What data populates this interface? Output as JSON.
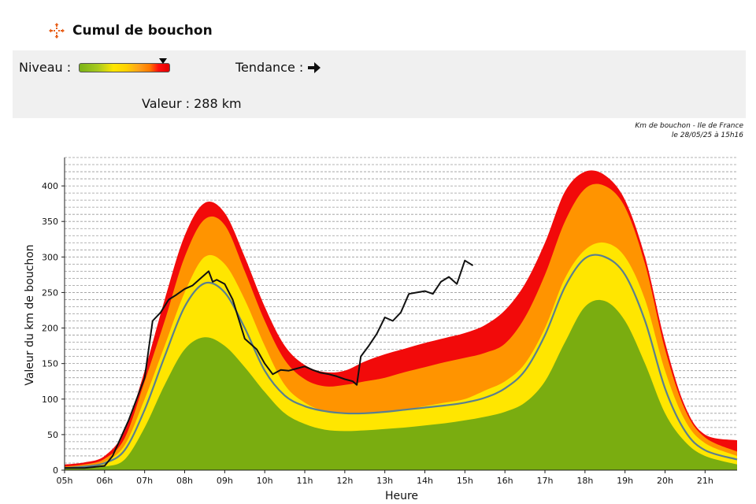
{
  "header": {
    "title": "Cumul de bouchon",
    "icon": "move-arrows-icon"
  },
  "panel": {
    "niveau_label": "Niveau :",
    "niveau_level": 0.93,
    "tendance_label": "Tendance :",
    "tendance_icon": "arrow-right-icon",
    "valeur_label": "Valeur : 288 km"
  },
  "source": {
    "line1": "Km de bouchon - Ile de France",
    "line2": "le 28/05/25 à 15h16"
  },
  "chart_data": {
    "type": "area",
    "xlabel": "Heure",
    "ylabel": "Valeur du  km de bouchon",
    "xlim": [
      5,
      21.8
    ],
    "ylim": [
      0,
      440
    ],
    "x_ticks": [
      "05h",
      "06h",
      "07h",
      "08h",
      "09h",
      "10h",
      "11h",
      "12h",
      "13h",
      "14h",
      "15h",
      "16h",
      "17h",
      "18h",
      "19h",
      "20h",
      "21h"
    ],
    "y_ticks": [
      0,
      50,
      100,
      150,
      200,
      250,
      300,
      350,
      400
    ],
    "grid": "dashed-horizontal",
    "bands_x": [
      5,
      5.5,
      6,
      6.5,
      7,
      7.5,
      8,
      8.5,
      9,
      9.5,
      10,
      10.5,
      11,
      11.5,
      12,
      12.5,
      13,
      13.5,
      14,
      14.5,
      15,
      15.5,
      16,
      16.5,
      17,
      17.5,
      18,
      18.5,
      19,
      19.5,
      20,
      20.5,
      21,
      21.8
    ],
    "series": [
      {
        "name": "",
        "color": "#7aad10",
        "values": [
          2,
          3,
          5,
          15,
          60,
          120,
          170,
          187,
          175,
          145,
          110,
          80,
          65,
          57,
          55,
          56,
          58,
          60,
          63,
          66,
          70,
          75,
          82,
          95,
          125,
          180,
          230,
          238,
          210,
          150,
          80,
          40,
          20,
          8
        ]
      },
      {
        "name": "",
        "color": "#ffe600",
        "values": [
          4,
          6,
          12,
          35,
          100,
          175,
          250,
          300,
          290,
          240,
          175,
          120,
          95,
          83,
          80,
          80,
          82,
          85,
          90,
          95,
          100,
          112,
          125,
          150,
          200,
          270,
          310,
          320,
          300,
          240,
          140,
          70,
          38,
          20
        ]
      },
      {
        "name": "",
        "color": "#ff9400",
        "values": [
          5,
          8,
          16,
          45,
          125,
          210,
          300,
          353,
          345,
          280,
          210,
          155,
          128,
          118,
          120,
          125,
          130,
          138,
          145,
          152,
          158,
          165,
          178,
          215,
          275,
          350,
          396,
          400,
          370,
          290,
          170,
          85,
          46,
          26
        ]
      },
      {
        "name": "",
        "color": "#f20a0a",
        "values": [
          8,
          11,
          20,
          55,
          140,
          240,
          330,
          376,
          362,
          300,
          230,
          175,
          148,
          138,
          140,
          153,
          163,
          171,
          179,
          186,
          193,
          204,
          225,
          262,
          320,
          392,
          420,
          415,
          380,
          300,
          180,
          90,
          50,
          42
        ]
      }
    ],
    "mean_curve": {
      "color": "#5a7f8f",
      "x": [
        5,
        5.5,
        6,
        6.5,
        7,
        7.5,
        8,
        8.5,
        9,
        9.5,
        10,
        10.5,
        11,
        11.5,
        12,
        12.5,
        13,
        13.5,
        14,
        14.5,
        15,
        15.5,
        16,
        16.5,
        17,
        17.5,
        18,
        18.5,
        19,
        19.5,
        20,
        20.5,
        21,
        21.8
      ],
      "values": [
        3,
        5,
        10,
        28,
        85,
        160,
        230,
        263,
        250,
        200,
        140,
        105,
        90,
        83,
        80,
        80,
        82,
        85,
        88,
        91,
        95,
        102,
        115,
        140,
        190,
        258,
        298,
        300,
        275,
        210,
        115,
        55,
        28,
        15
      ]
    },
    "current": {
      "color": "#111111",
      "x": [
        5,
        5.5,
        6,
        6.2,
        6.4,
        6.6,
        6.8,
        7,
        7.2,
        7.4,
        7.6,
        7.8,
        8,
        8.2,
        8.4,
        8.6,
        8.7,
        8.8,
        9,
        9.2,
        9.5,
        9.8,
        10,
        10.2,
        10.4,
        10.6,
        10.8,
        11,
        11.2,
        11.4,
        11.6,
        11.8,
        12,
        12.2,
        12.3,
        12.4,
        12.6,
        12.8,
        13,
        13.2,
        13.4,
        13.6,
        13.8,
        14,
        14.2,
        14.4,
        14.6,
        14.8,
        15,
        15.2
      ],
      "values": [
        3,
        3,
        6,
        20,
        45,
        70,
        100,
        130,
        210,
        222,
        240,
        247,
        255,
        260,
        270,
        280,
        265,
        268,
        262,
        240,
        185,
        170,
        150,
        135,
        141,
        140,
        143,
        146,
        141,
        137,
        135,
        132,
        128,
        125,
        120,
        160,
        175,
        192,
        215,
        210,
        222,
        248,
        250,
        252,
        248,
        265,
        272,
        262,
        295,
        288
      ]
    }
  }
}
